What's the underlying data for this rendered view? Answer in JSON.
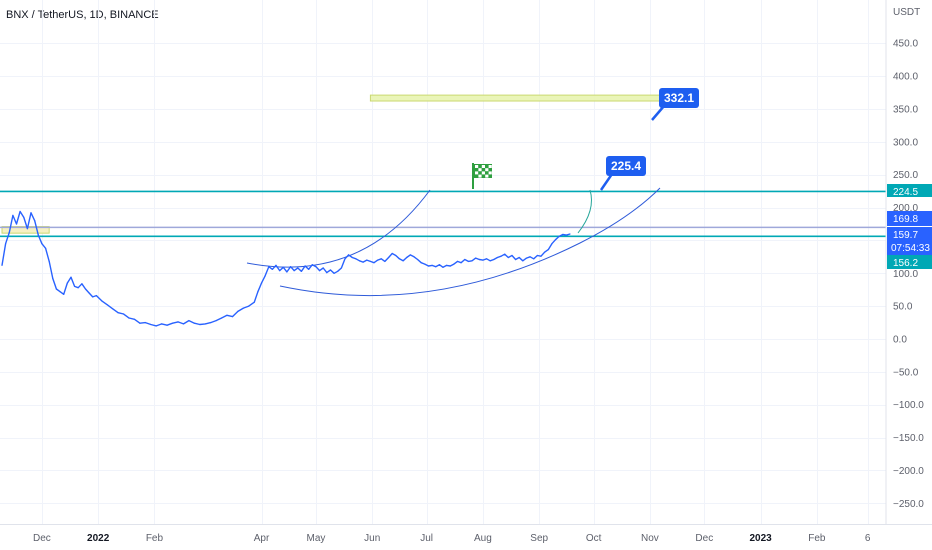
{
  "header": {
    "title": "BNX / TetherUS, 1D, BINANCE"
  },
  "chart_data": {
    "type": "line",
    "unit": "USDT",
    "ylim": [
      -270,
      520
    ],
    "y_ticks": [
      450,
      400,
      350,
      300,
      250,
      200,
      150,
      100,
      50,
      0,
      -50,
      -100,
      -150,
      -200,
      -250
    ],
    "y_tick_labels": [
      "450.0",
      "400.0",
      "350.0",
      "300.0",
      "250.0",
      "200.0",
      "150.0",
      "100.0",
      "50.0",
      "0.0",
      "−50.0",
      "−100.0",
      "−150.0",
      "−200.0",
      "−250.0"
    ],
    "x_axis": {
      "start": "2021-11-09",
      "end": "2023-03-05",
      "ticks": [
        {
          "date": "2021-12-01",
          "label": "Dec",
          "bold": false
        },
        {
          "date": "2022-01-01",
          "label": "2022",
          "bold": true
        },
        {
          "date": "2022-02-01",
          "label": "Feb",
          "bold": false
        },
        {
          "date": "2022-04-01",
          "label": "Apr",
          "bold": false
        },
        {
          "date": "2022-05-01",
          "label": "May",
          "bold": false
        },
        {
          "date": "2022-06-01",
          "label": "Jun",
          "bold": false
        },
        {
          "date": "2022-07-01",
          "label": "Jul",
          "bold": false
        },
        {
          "date": "2022-08-01",
          "label": "Aug",
          "bold": false
        },
        {
          "date": "2022-09-01",
          "label": "Sep",
          "bold": false
        },
        {
          "date": "2022-10-01",
          "label": "Oct",
          "bold": false
        },
        {
          "date": "2022-11-01",
          "label": "Nov",
          "bold": false
        },
        {
          "date": "2022-12-01",
          "label": "Dec",
          "bold": false
        },
        {
          "date": "2023-01-01",
          "label": "2023",
          "bold": true
        },
        {
          "date": "2023-02-01",
          "label": "Feb",
          "bold": false
        },
        {
          "date": "2023-03-01",
          "label": "6",
          "bold": false
        }
      ]
    },
    "series": [
      {
        "name": "",
        "color": "#2962ff",
        "points": [
          [
            "2021-11-09",
            112
          ],
          [
            "2021-11-11",
            145
          ],
          [
            "2021-11-13",
            162
          ],
          [
            "2021-11-15",
            188
          ],
          [
            "2021-11-17",
            175
          ],
          [
            "2021-11-19",
            194
          ],
          [
            "2021-11-21",
            185
          ],
          [
            "2021-11-23",
            168
          ],
          [
            "2021-11-25",
            192
          ],
          [
            "2021-11-27",
            180
          ],
          [
            "2021-11-29",
            158
          ],
          [
            "2021-12-01",
            145
          ],
          [
            "2021-12-03",
            138
          ],
          [
            "2021-12-05",
            118
          ],
          [
            "2021-12-07",
            92
          ],
          [
            "2021-12-09",
            76
          ],
          [
            "2021-12-11",
            72
          ],
          [
            "2021-12-13",
            68
          ],
          [
            "2021-12-15",
            85
          ],
          [
            "2021-12-17",
            94
          ],
          [
            "2021-12-19",
            80
          ],
          [
            "2021-12-21",
            78
          ],
          [
            "2021-12-23",
            84
          ],
          [
            "2021-12-25",
            76
          ],
          [
            "2021-12-27",
            70
          ],
          [
            "2021-12-29",
            64
          ],
          [
            "2021-12-31",
            66
          ],
          [
            "2022-01-03",
            58
          ],
          [
            "2022-01-06",
            52
          ],
          [
            "2022-01-09",
            46
          ],
          [
            "2022-01-12",
            40
          ],
          [
            "2022-01-15",
            38
          ],
          [
            "2022-01-18",
            32
          ],
          [
            "2022-01-21",
            30
          ],
          [
            "2022-01-24",
            24
          ],
          [
            "2022-01-27",
            25
          ],
          [
            "2022-01-30",
            22
          ],
          [
            "2022-02-02",
            20
          ],
          [
            "2022-02-05",
            23
          ],
          [
            "2022-02-08",
            21
          ],
          [
            "2022-02-11",
            24
          ],
          [
            "2022-02-14",
            26
          ],
          [
            "2022-02-17",
            23
          ],
          [
            "2022-02-20",
            28
          ],
          [
            "2022-02-23",
            24
          ],
          [
            "2022-02-26",
            22
          ],
          [
            "2022-03-01",
            23
          ],
          [
            "2022-03-04",
            25
          ],
          [
            "2022-03-07",
            28
          ],
          [
            "2022-03-10",
            32
          ],
          [
            "2022-03-13",
            36
          ],
          [
            "2022-03-16",
            34
          ],
          [
            "2022-03-19",
            42
          ],
          [
            "2022-03-22",
            47
          ],
          [
            "2022-03-25",
            50
          ],
          [
            "2022-03-28",
            56
          ],
          [
            "2022-03-30",
            72
          ],
          [
            "2022-04-01",
            85
          ],
          [
            "2022-04-03",
            96
          ],
          [
            "2022-04-05",
            110
          ],
          [
            "2022-04-07",
            106
          ],
          [
            "2022-04-09",
            112
          ],
          [
            "2022-04-11",
            104
          ],
          [
            "2022-04-13",
            109
          ],
          [
            "2022-04-15",
            102
          ],
          [
            "2022-04-17",
            110
          ],
          [
            "2022-04-19",
            104
          ],
          [
            "2022-04-21",
            108
          ],
          [
            "2022-04-23",
            103
          ],
          [
            "2022-04-25",
            111
          ],
          [
            "2022-04-27",
            106
          ],
          [
            "2022-04-29",
            113
          ],
          [
            "2022-05-01",
            110
          ],
          [
            "2022-05-03",
            104
          ],
          [
            "2022-05-05",
            108
          ],
          [
            "2022-05-07",
            101
          ],
          [
            "2022-05-09",
            105
          ],
          [
            "2022-05-11",
            100
          ],
          [
            "2022-05-13",
            103
          ],
          [
            "2022-05-15",
            108
          ],
          [
            "2022-05-17",
            122
          ],
          [
            "2022-05-19",
            128
          ],
          [
            "2022-05-21",
            124
          ],
          [
            "2022-05-23",
            122
          ],
          [
            "2022-05-25",
            119
          ],
          [
            "2022-05-27",
            117
          ],
          [
            "2022-05-29",
            120
          ],
          [
            "2022-05-31",
            118
          ],
          [
            "2022-06-02",
            116
          ],
          [
            "2022-06-04",
            120
          ],
          [
            "2022-06-06",
            122
          ],
          [
            "2022-06-08",
            118
          ],
          [
            "2022-06-10",
            124
          ],
          [
            "2022-06-12",
            130
          ],
          [
            "2022-06-14",
            127
          ],
          [
            "2022-06-16",
            122
          ],
          [
            "2022-06-18",
            119
          ],
          [
            "2022-06-20",
            124
          ],
          [
            "2022-06-22",
            128
          ],
          [
            "2022-06-24",
            125
          ],
          [
            "2022-06-26",
            121
          ],
          [
            "2022-06-28",
            116
          ],
          [
            "2022-06-30",
            114
          ],
          [
            "2022-07-02",
            111
          ],
          [
            "2022-07-04",
            112
          ],
          [
            "2022-07-06",
            110
          ],
          [
            "2022-07-08",
            113
          ],
          [
            "2022-07-10",
            109
          ],
          [
            "2022-07-12",
            112
          ],
          [
            "2022-07-14",
            111
          ],
          [
            "2022-07-16",
            114
          ],
          [
            "2022-07-18",
            118
          ],
          [
            "2022-07-20",
            116
          ],
          [
            "2022-07-22",
            121
          ],
          [
            "2022-07-24",
            118
          ],
          [
            "2022-07-26",
            119
          ],
          [
            "2022-07-28",
            123
          ],
          [
            "2022-07-30",
            121
          ],
          [
            "2022-08-01",
            120
          ],
          [
            "2022-08-03",
            122
          ],
          [
            "2022-08-05",
            119
          ],
          [
            "2022-08-07",
            121
          ],
          [
            "2022-08-09",
            124
          ],
          [
            "2022-08-11",
            126
          ],
          [
            "2022-08-13",
            129
          ],
          [
            "2022-08-15",
            124
          ],
          [
            "2022-08-17",
            127
          ],
          [
            "2022-08-19",
            121
          ],
          [
            "2022-08-21",
            124
          ],
          [
            "2022-08-23",
            119
          ],
          [
            "2022-08-25",
            123
          ],
          [
            "2022-08-27",
            125
          ],
          [
            "2022-08-29",
            122
          ],
          [
            "2022-08-31",
            127
          ],
          [
            "2022-09-02",
            126
          ],
          [
            "2022-09-04",
            132
          ],
          [
            "2022-09-06",
            136
          ],
          [
            "2022-09-08",
            145
          ],
          [
            "2022-09-10",
            151
          ],
          [
            "2022-09-12",
            156
          ],
          [
            "2022-09-14",
            159
          ],
          [
            "2022-09-16",
            158
          ],
          [
            "2022-09-18",
            159.7
          ]
        ]
      }
    ],
    "horizontal_lines": [
      {
        "value": 224.5,
        "color": "#00a8b5",
        "label": "224.5"
      },
      {
        "value": 169.8,
        "color": "#9fa8da",
        "label": "169.8"
      },
      {
        "value": 156.2,
        "color": "#00a8b5",
        "label": "156.2"
      }
    ],
    "zones": [
      {
        "from": "2022-05-31",
        "to": "2022-11-16",
        "low": 362,
        "high": 371,
        "color": "#e9f5b5"
      },
      {
        "from": "2021-11-09",
        "to": "2021-12-05",
        "low": 161,
        "high": 171,
        "color": "#f6f0c0"
      }
    ],
    "price_tags": [
      {
        "value": 169.8,
        "label": "169.8",
        "color": "#2962ff"
      },
      {
        "value": 159.7,
        "label": "159.7",
        "sublabel": "07:54:33",
        "color": "#2962ff"
      },
      {
        "value": 224.5,
        "label": "224.5",
        "color": "#00a8b5"
      },
      {
        "value": 156.2,
        "label": "156.2",
        "color": "#00a8b5"
      }
    ],
    "callouts": [
      {
        "label": "332.1",
        "color": "#1e5ef0"
      },
      {
        "label": "225.4",
        "color": "#1e5ef0"
      }
    ],
    "flag": {
      "icon": "checkered-flag-icon",
      "color": "#2e9f3f"
    }
  }
}
